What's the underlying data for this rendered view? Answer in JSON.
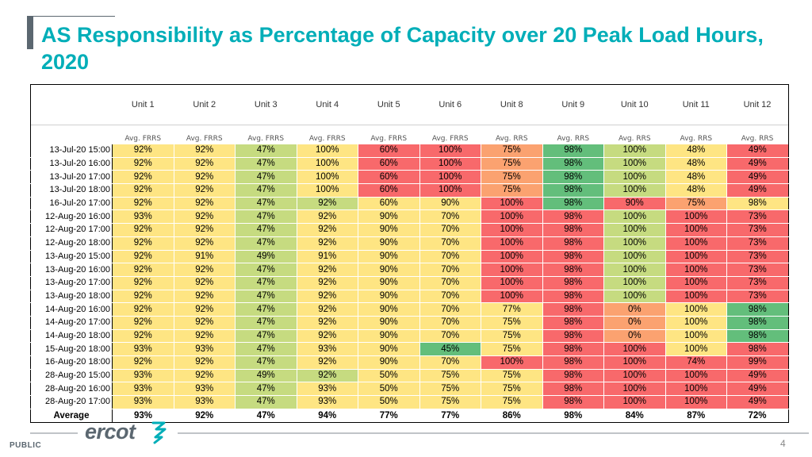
{
  "title": "AS Responsibility as Percentage of Capacity over 20 Peak Load Hours, 2020",
  "colors": {
    "title": "#00aeb8",
    "green": "#63be7b",
    "yellow_green": "#c6db80",
    "yellow": "#fee583",
    "orange": "#fba270",
    "red": "#f8696b"
  },
  "table": {
    "units": [
      "Unit 1",
      "Unit 2",
      "Unit 3",
      "Unit 4",
      "Unit 5",
      "Unit 6",
      "Unit 8",
      "Unit 9",
      "Unit 10",
      "Unit 11",
      "Unit 12"
    ],
    "metrics": [
      "Avg. FRRS",
      "Avg. FRRS",
      "Avg. FRRS",
      "Avg. FRRS",
      "Avg. FRRS",
      "Avg. FRRS",
      "Avg. RRS",
      "Avg. RRS",
      "Avg. RRS",
      "Avg. RRS",
      "Avg. RRS"
    ],
    "rows": [
      {
        "time": "13-Jul-20 15:00",
        "values": [
          "92%",
          "92%",
          "47%",
          "100%",
          "60%",
          "100%",
          "75%",
          "98%",
          "100%",
          "48%",
          "49%"
        ]
      },
      {
        "time": "13-Jul-20 16:00",
        "values": [
          "92%",
          "92%",
          "47%",
          "100%",
          "60%",
          "100%",
          "75%",
          "98%",
          "100%",
          "48%",
          "49%"
        ]
      },
      {
        "time": "13-Jul-20 17:00",
        "values": [
          "92%",
          "92%",
          "47%",
          "100%",
          "60%",
          "100%",
          "75%",
          "98%",
          "100%",
          "48%",
          "49%"
        ]
      },
      {
        "time": "13-Jul-20 18:00",
        "values": [
          "92%",
          "92%",
          "47%",
          "100%",
          "60%",
          "100%",
          "75%",
          "98%",
          "100%",
          "48%",
          "49%"
        ]
      },
      {
        "time": "16-Jul-20 17:00",
        "values": [
          "92%",
          "92%",
          "47%",
          "92%",
          "60%",
          "90%",
          "100%",
          "98%",
          "90%",
          "75%",
          "98%"
        ]
      },
      {
        "time": "12-Aug-20 16:00",
        "values": [
          "93%",
          "92%",
          "47%",
          "92%",
          "90%",
          "70%",
          "100%",
          "98%",
          "100%",
          "100%",
          "73%"
        ]
      },
      {
        "time": "12-Aug-20 17:00",
        "values": [
          "92%",
          "92%",
          "47%",
          "92%",
          "90%",
          "70%",
          "100%",
          "98%",
          "100%",
          "100%",
          "73%"
        ]
      },
      {
        "time": "12-Aug-20 18:00",
        "values": [
          "92%",
          "92%",
          "47%",
          "92%",
          "90%",
          "70%",
          "100%",
          "98%",
          "100%",
          "100%",
          "73%"
        ]
      },
      {
        "time": "13-Aug-20 15:00",
        "values": [
          "92%",
          "91%",
          "49%",
          "91%",
          "90%",
          "70%",
          "100%",
          "98%",
          "100%",
          "100%",
          "73%"
        ]
      },
      {
        "time": "13-Aug-20 16:00",
        "values": [
          "92%",
          "92%",
          "47%",
          "92%",
          "90%",
          "70%",
          "100%",
          "98%",
          "100%",
          "100%",
          "73%"
        ]
      },
      {
        "time": "13-Aug-20 17:00",
        "values": [
          "92%",
          "92%",
          "47%",
          "92%",
          "90%",
          "70%",
          "100%",
          "98%",
          "100%",
          "100%",
          "73%"
        ]
      },
      {
        "time": "13-Aug-20 18:00",
        "values": [
          "92%",
          "92%",
          "47%",
          "92%",
          "90%",
          "70%",
          "100%",
          "98%",
          "100%",
          "100%",
          "73%"
        ]
      },
      {
        "time": "14-Aug-20 16:00",
        "values": [
          "92%",
          "92%",
          "47%",
          "92%",
          "90%",
          "70%",
          "77%",
          "98%",
          "0%",
          "100%",
          "98%"
        ]
      },
      {
        "time": "14-Aug-20 17:00",
        "values": [
          "92%",
          "92%",
          "47%",
          "92%",
          "90%",
          "70%",
          "75%",
          "98%",
          "0%",
          "100%",
          "98%"
        ]
      },
      {
        "time": "14-Aug-20 18:00",
        "values": [
          "92%",
          "92%",
          "47%",
          "92%",
          "90%",
          "70%",
          "75%",
          "98%",
          "0%",
          "100%",
          "98%"
        ]
      },
      {
        "time": "15-Aug-20 18:00",
        "values": [
          "93%",
          "93%",
          "47%",
          "93%",
          "90%",
          "45%",
          "75%",
          "98%",
          "100%",
          "100%",
          "98%"
        ]
      },
      {
        "time": "16-Aug-20 18:00",
        "values": [
          "92%",
          "92%",
          "47%",
          "92%",
          "90%",
          "70%",
          "100%",
          "98%",
          "100%",
          "74%",
          "99%"
        ]
      },
      {
        "time": "28-Aug-20 15:00",
        "values": [
          "93%",
          "92%",
          "49%",
          "92%",
          "50%",
          "75%",
          "75%",
          "98%",
          "100%",
          "100%",
          "49%"
        ]
      },
      {
        "time": "28-Aug-20 16:00",
        "values": [
          "93%",
          "93%",
          "47%",
          "93%",
          "50%",
          "75%",
          "75%",
          "98%",
          "100%",
          "100%",
          "49%"
        ]
      },
      {
        "time": "28-Aug-20 17:00",
        "values": [
          "93%",
          "93%",
          "47%",
          "93%",
          "50%",
          "75%",
          "75%",
          "98%",
          "100%",
          "100%",
          "49%"
        ]
      }
    ],
    "colors": [
      [
        "yellow",
        "yellow",
        "yellow_green",
        "yellow",
        "red",
        "red",
        "orange",
        "green",
        "yellow_green",
        "yellow",
        "red"
      ],
      [
        "yellow",
        "yellow",
        "yellow_green",
        "yellow",
        "red",
        "red",
        "orange",
        "green",
        "yellow_green",
        "yellow",
        "red"
      ],
      [
        "yellow",
        "yellow",
        "yellow_green",
        "yellow",
        "red",
        "red",
        "orange",
        "green",
        "yellow_green",
        "yellow",
        "red"
      ],
      [
        "yellow",
        "yellow",
        "yellow_green",
        "yellow",
        "red",
        "red",
        "orange",
        "green",
        "yellow_green",
        "yellow",
        "red"
      ],
      [
        "yellow",
        "yellow",
        "yellow_green",
        "yellow_green",
        "yellow",
        "yellow",
        "red",
        "green",
        "red",
        "orange",
        "yellow"
      ],
      [
        "yellow",
        "yellow",
        "yellow_green",
        "yellow",
        "yellow",
        "yellow",
        "red",
        "red",
        "yellow_green",
        "red",
        "red"
      ],
      [
        "yellow",
        "yellow",
        "yellow_green",
        "yellow",
        "yellow",
        "yellow",
        "red",
        "red",
        "yellow_green",
        "red",
        "red"
      ],
      [
        "yellow",
        "yellow",
        "yellow_green",
        "yellow",
        "yellow",
        "yellow",
        "red",
        "red",
        "yellow_green",
        "red",
        "red"
      ],
      [
        "yellow",
        "yellow",
        "yellow_green",
        "yellow",
        "yellow",
        "yellow",
        "red",
        "red",
        "yellow_green",
        "red",
        "red"
      ],
      [
        "yellow",
        "yellow",
        "yellow_green",
        "yellow",
        "yellow",
        "yellow",
        "red",
        "red",
        "yellow_green",
        "red",
        "red"
      ],
      [
        "yellow",
        "yellow",
        "yellow_green",
        "yellow",
        "yellow",
        "yellow",
        "red",
        "red",
        "yellow_green",
        "red",
        "red"
      ],
      [
        "yellow",
        "yellow",
        "yellow_green",
        "yellow",
        "yellow",
        "yellow",
        "red",
        "red",
        "yellow_green",
        "red",
        "red"
      ],
      [
        "yellow",
        "yellow",
        "yellow_green",
        "yellow",
        "yellow",
        "yellow",
        "yellow",
        "red",
        "orange",
        "yellow",
        "green"
      ],
      [
        "yellow",
        "yellow",
        "yellow_green",
        "yellow",
        "yellow",
        "yellow",
        "yellow",
        "red",
        "orange",
        "yellow",
        "green"
      ],
      [
        "yellow",
        "yellow",
        "yellow_green",
        "yellow",
        "yellow",
        "yellow",
        "yellow",
        "red",
        "orange",
        "yellow",
        "green"
      ],
      [
        "yellow",
        "yellow",
        "yellow_green",
        "yellow",
        "yellow",
        "green",
        "yellow",
        "red",
        "red",
        "yellow",
        "red"
      ],
      [
        "yellow",
        "yellow",
        "yellow_green",
        "yellow",
        "yellow",
        "yellow",
        "red",
        "red",
        "red",
        "red",
        "red"
      ],
      [
        "yellow",
        "yellow",
        "yellow_green",
        "yellow_green",
        "yellow",
        "yellow",
        "yellow",
        "red",
        "red",
        "red",
        "red"
      ],
      [
        "yellow",
        "yellow",
        "yellow_green",
        "yellow",
        "yellow",
        "yellow",
        "yellow",
        "red",
        "red",
        "red",
        "red"
      ],
      [
        "yellow",
        "yellow",
        "yellow_green",
        "yellow",
        "yellow",
        "yellow",
        "yellow",
        "red",
        "red",
        "red",
        "red"
      ]
    ],
    "average": {
      "label": "Average",
      "values": [
        "93%",
        "92%",
        "47%",
        "94%",
        "77%",
        "77%",
        "86%",
        "98%",
        "84%",
        "87%",
        "72%"
      ]
    }
  },
  "footer": {
    "logo_text": "ercot",
    "classification": "PUBLIC",
    "page_number": "4"
  }
}
